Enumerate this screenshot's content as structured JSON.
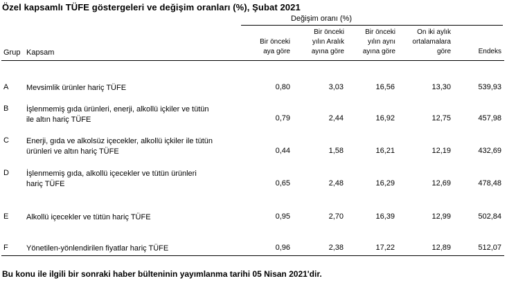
{
  "title": "Özel kapsamlı TÜFE göstergeleri ve değişim oranları (%), Şubat 2021",
  "group_header": "Değişim oranı (%)",
  "columns": {
    "grup": "Grup",
    "kapsam": "Kapsam",
    "c1": [
      "Bir önceki",
      "aya göre"
    ],
    "c2": [
      "Bir önceki",
      "yılın Aralık",
      "ayına göre"
    ],
    "c3": [
      "Bir önceki",
      "yılın aynı",
      "ayına göre"
    ],
    "c4": [
      "On iki aylık",
      "ortalamalara",
      "göre"
    ],
    "c5": "Endeks"
  },
  "rows": [
    {
      "grup": "A",
      "kapsam": [
        "Mevsimlik ürünler hariç TÜFE"
      ],
      "v1": "0,80",
      "v2": "3,03",
      "v3": "16,56",
      "v4": "13,30",
      "v5": "539,93"
    },
    {
      "grup": "B",
      "kapsam": [
        "İşlenmemiş gıda ürünleri, enerji, alkollü içkiler ve tütün",
        "ile altın hariç TÜFE"
      ],
      "v1": "0,79",
      "v2": "2,44",
      "v3": "16,92",
      "v4": "12,75",
      "v5": "457,98"
    },
    {
      "grup": "C",
      "kapsam": [
        "Enerji, gıda ve alkolsüz içecekler, alkollü içkiler ile tütün",
        "ürünleri ve altın hariç TÜFE"
      ],
      "v1": "0,44",
      "v2": "1,58",
      "v3": "16,21",
      "v4": "12,19",
      "v5": "432,69"
    },
    {
      "grup": "D",
      "kapsam": [
        "İşlenmemiş gıda, alkollü içecekler ve tütün ürünleri",
        "hariç TÜFE"
      ],
      "v1": "0,65",
      "v2": "2,48",
      "v3": "16,29",
      "v4": "12,69",
      "v5": "478,48"
    },
    {
      "grup": "E",
      "kapsam": [
        "Alkollü içecekler ve tütün hariç TÜFE"
      ],
      "v1": "0,95",
      "v2": "2,70",
      "v3": "16,39",
      "v4": "12,99",
      "v5": "502,84"
    },
    {
      "grup": "F",
      "kapsam": [
        "Yönetilen-yönlendirilen fiyatlar hariç TÜFE"
      ],
      "v1": "0,96",
      "v2": "2,38",
      "v3": "17,22",
      "v4": "12,89",
      "v5": "512,07"
    }
  ],
  "footer": "Bu konu ile ilgili bir sonraki haber bülteninin yayımlanma tarihi 05 Nisan 2021'dir."
}
